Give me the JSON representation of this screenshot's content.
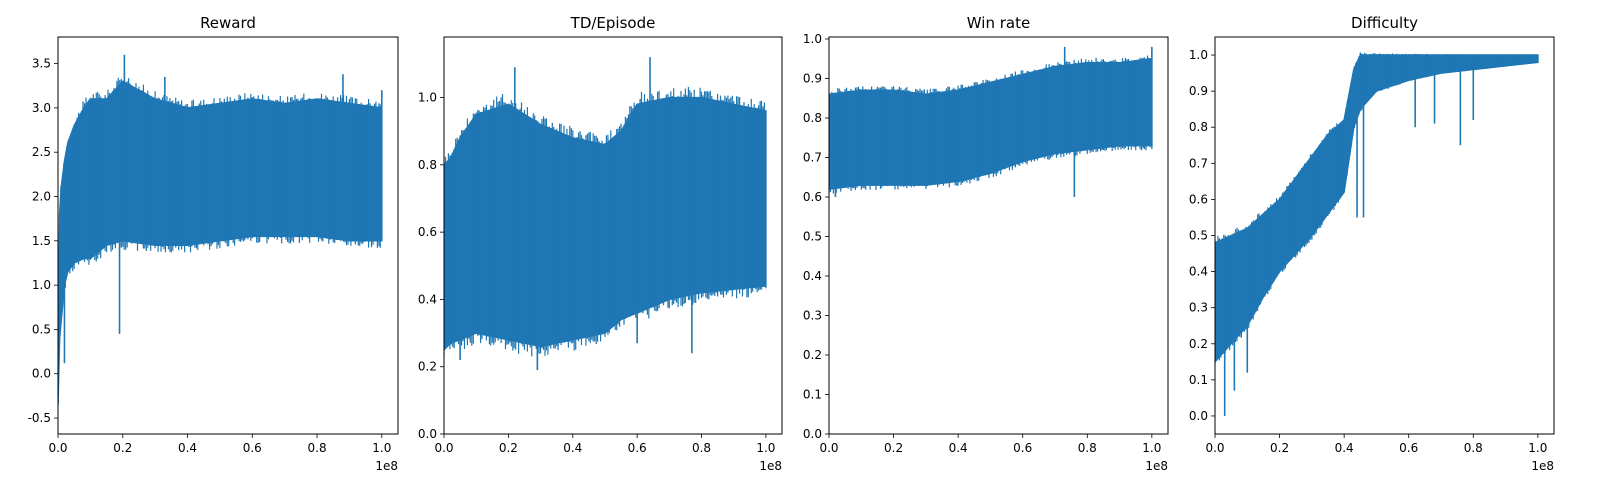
{
  "chart_data": [
    {
      "type": "line",
      "title": "Reward",
      "xlabel": "",
      "ylabel": "",
      "x_offset_text": "1e8",
      "xlim": [
        0,
        1.05
      ],
      "ylim": [
        -0.68,
        3.8
      ],
      "xticks": [
        0.0,
        0.2,
        0.4,
        0.6,
        0.8,
        1.0
      ],
      "yticks": [
        -0.5,
        0.0,
        0.5,
        1.0,
        1.5,
        2.0,
        2.5,
        3.0,
        3.5
      ],
      "grid": false,
      "color": "#1f77b4",
      "series": [
        {
          "x": [
            0.0,
            0.005,
            0.01,
            0.02,
            0.03,
            0.05,
            0.08,
            0.1,
            0.15,
            0.2,
            0.3,
            0.4,
            0.5,
            0.6,
            0.7,
            0.8,
            0.9,
            1.0
          ],
          "upper": [
            -0.3,
            1.8,
            2.1,
            2.4,
            2.6,
            2.8,
            3.0,
            3.1,
            3.1,
            3.3,
            3.1,
            3.0,
            3.05,
            3.1,
            3.05,
            3.1,
            3.05,
            3.0
          ],
          "lower": [
            -0.35,
            0.4,
            0.6,
            1.0,
            1.15,
            1.25,
            1.3,
            1.3,
            1.45,
            1.5,
            1.45,
            1.45,
            1.5,
            1.55,
            1.55,
            1.55,
            1.5,
            1.5
          ],
          "spikes": [
            {
              "x": 0.005,
              "y": 0.7
            },
            {
              "x": 0.02,
              "y": 0.12
            },
            {
              "x": 0.19,
              "y": 0.45
            },
            {
              "x": 0.205,
              "y": 3.6
            },
            {
              "x": 0.33,
              "y": 3.35
            },
            {
              "x": 0.88,
              "y": 3.38
            },
            {
              "x": 1.0,
              "y": 3.2
            }
          ]
        }
      ]
    },
    {
      "type": "line",
      "title": "TD/Episode",
      "xlabel": "",
      "ylabel": "",
      "x_offset_text": "1e8",
      "xlim": [
        0,
        1.05
      ],
      "ylim": [
        0.0,
        1.18
      ],
      "xticks": [
        0.0,
        0.2,
        0.4,
        0.6,
        0.8,
        1.0
      ],
      "yticks": [
        0.0,
        0.2,
        0.4,
        0.6,
        0.8,
        1.0
      ],
      "grid": false,
      "color": "#1f77b4",
      "series": [
        {
          "x": [
            0.0,
            0.02,
            0.05,
            0.1,
            0.2,
            0.3,
            0.4,
            0.5,
            0.55,
            0.6,
            0.7,
            0.8,
            0.9,
            1.0
          ],
          "upper": [
            0.8,
            0.82,
            0.88,
            0.95,
            0.98,
            0.92,
            0.88,
            0.86,
            0.9,
            0.98,
            1.0,
            1.0,
            0.98,
            0.96
          ],
          "lower": [
            0.25,
            0.27,
            0.28,
            0.3,
            0.28,
            0.26,
            0.28,
            0.3,
            0.34,
            0.36,
            0.4,
            0.42,
            0.43,
            0.44
          ],
          "spikes": [
            {
              "x": 0.22,
              "y": 1.09
            },
            {
              "x": 0.29,
              "y": 0.19
            },
            {
              "x": 0.64,
              "y": 1.12
            },
            {
              "x": 0.77,
              "y": 0.24
            },
            {
              "x": 0.05,
              "y": 0.22
            },
            {
              "x": 0.6,
              "y": 0.27
            }
          ]
        }
      ]
    },
    {
      "type": "line",
      "title": "Win rate",
      "xlabel": "",
      "ylabel": "",
      "x_offset_text": "1e8",
      "xlim": [
        0,
        1.05
      ],
      "ylim": [
        0.0,
        1.005
      ],
      "xticks": [
        0.0,
        0.2,
        0.4,
        0.6,
        0.8,
        1.0
      ],
      "yticks": [
        0.0,
        0.1,
        0.2,
        0.3,
        0.4,
        0.5,
        0.6,
        0.7,
        0.8,
        0.9,
        1.0
      ],
      "grid": false,
      "color": "#1f77b4",
      "series": [
        {
          "x": [
            0.0,
            0.1,
            0.2,
            0.3,
            0.4,
            0.5,
            0.6,
            0.7,
            0.8,
            0.9,
            1.0
          ],
          "upper": [
            0.86,
            0.87,
            0.87,
            0.86,
            0.87,
            0.89,
            0.91,
            0.93,
            0.94,
            0.94,
            0.95
          ],
          "lower": [
            0.62,
            0.63,
            0.63,
            0.63,
            0.64,
            0.66,
            0.69,
            0.71,
            0.72,
            0.73,
            0.73
          ],
          "spikes": [
            {
              "x": 0.02,
              "y": 0.6
            },
            {
              "x": 0.73,
              "y": 0.98
            },
            {
              "x": 0.76,
              "y": 0.6
            },
            {
              "x": 1.0,
              "y": 0.98
            }
          ]
        }
      ]
    },
    {
      "type": "line",
      "title": "Difficulty",
      "xlabel": "",
      "ylabel": "",
      "x_offset_text": "1e8",
      "xlim": [
        0,
        1.05
      ],
      "ylim": [
        -0.05,
        1.05
      ],
      "xticks": [
        0.0,
        0.2,
        0.4,
        0.6,
        0.8,
        1.0
      ],
      "yticks": [
        0.0,
        0.1,
        0.2,
        0.3,
        0.4,
        0.5,
        0.6,
        0.7,
        0.8,
        0.9,
        1.0
      ],
      "grid": false,
      "color": "#1f77b4",
      "series": [
        {
          "x": [
            0.0,
            0.05,
            0.1,
            0.15,
            0.2,
            0.25,
            0.3,
            0.35,
            0.4,
            0.43,
            0.45,
            0.5,
            0.6,
            0.7,
            0.8,
            0.9,
            1.0
          ],
          "upper": [
            0.48,
            0.5,
            0.52,
            0.56,
            0.6,
            0.66,
            0.72,
            0.78,
            0.82,
            0.96,
            1.0,
            1.0,
            1.0,
            1.0,
            1.0,
            1.0,
            1.0
          ],
          "lower": [
            0.15,
            0.2,
            0.25,
            0.33,
            0.4,
            0.45,
            0.5,
            0.56,
            0.62,
            0.8,
            0.85,
            0.9,
            0.93,
            0.95,
            0.96,
            0.97,
            0.98
          ],
          "spikes": [
            {
              "x": 0.03,
              "y": 0.0
            },
            {
              "x": 0.06,
              "y": 0.07
            },
            {
              "x": 0.1,
              "y": 0.12
            },
            {
              "x": 0.44,
              "y": 0.55
            },
            {
              "x": 0.46,
              "y": 0.55
            },
            {
              "x": 0.62,
              "y": 0.8
            },
            {
              "x": 0.68,
              "y": 0.81
            },
            {
              "x": 0.76,
              "y": 0.75
            },
            {
              "x": 0.8,
              "y": 0.82
            },
            {
              "x": 0.9,
              "y": 0.97
            }
          ]
        }
      ]
    }
  ]
}
